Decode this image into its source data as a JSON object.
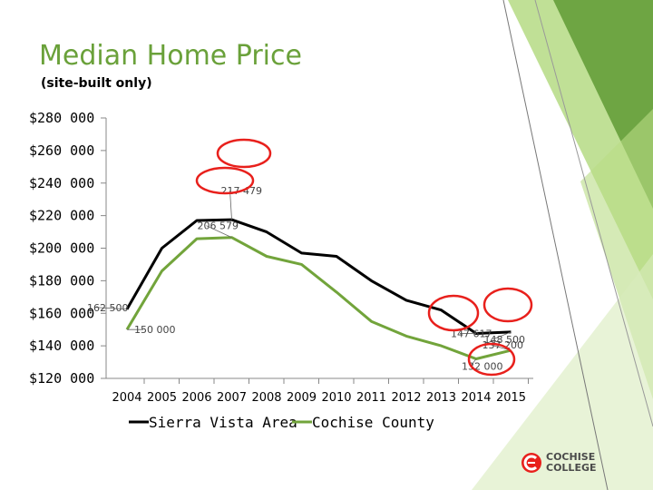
{
  "slide": {
    "title": "Median Home Price",
    "subtitle": "(site-built only)",
    "logo_line1": "COCHISE",
    "logo_line2": "COLLEGE"
  },
  "colors": {
    "title": "#6aa13a",
    "sierra_vista": "#000000",
    "cochise_county": "#72a43b",
    "highlight_circle": "#e8201c",
    "decor_green": "#8cc63f"
  },
  "chart_data": {
    "type": "line",
    "x": [
      "2004",
      "2005",
      "2006",
      "2007",
      "2008",
      "2009",
      "2010",
      "2011",
      "2012",
      "2013",
      "2014",
      "2015"
    ],
    "series": [
      {
        "name": "Sierra Vista Area",
        "values": [
          162500,
          200000,
          217000,
          217479,
          210000,
          197000,
          195000,
          180000,
          168000,
          162000,
          147617,
          148500
        ]
      },
      {
        "name": "Cochise County",
        "values": [
          150000,
          186000,
          205800,
          206579,
          195000,
          190000,
          173000,
          155000,
          146000,
          140000,
          132000,
          137200
        ]
      }
    ],
    "ylim": [
      120000,
      280000
    ],
    "yticks": [
      "$120 000",
      "$140 000",
      "$160 000",
      "$180 000",
      "$200 000",
      "$220 000",
      "$240 000",
      "$260 000",
      "$280 000"
    ],
    "data_labels": [
      {
        "series": 0,
        "index": 0,
        "text": "162 500"
      },
      {
        "series": 1,
        "index": 0,
        "text": "150 000"
      },
      {
        "series": 0,
        "index": 3,
        "text": "217 479"
      },
      {
        "series": 1,
        "index": 3,
        "text": "206 579"
      },
      {
        "series": 0,
        "index": 10,
        "text": "147 617"
      },
      {
        "series": 0,
        "index": 11,
        "text": "148 500"
      },
      {
        "series": 1,
        "index": 10,
        "text": "132 000"
      },
      {
        "series": 1,
        "index": 11,
        "text": "137 200"
      }
    ],
    "legend": {
      "position": "bottom"
    },
    "grid": false
  }
}
